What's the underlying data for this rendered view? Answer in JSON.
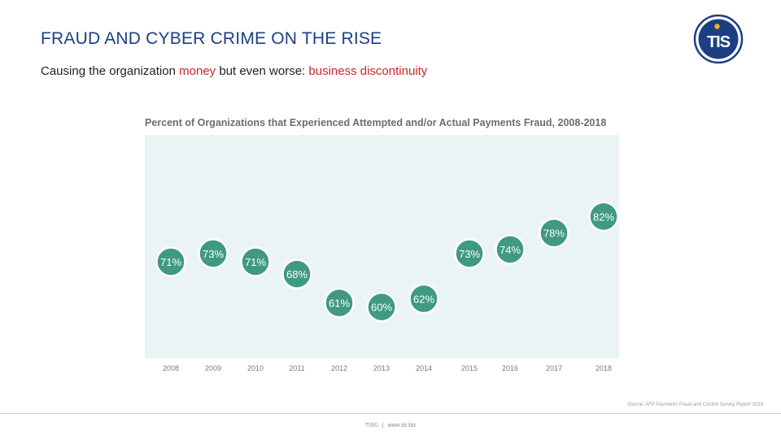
{
  "slide": {
    "title": "FRAUD AND CYBER CRIME ON THE RISE",
    "subtitle_prefix": "Causing the organization ",
    "subtitle_hl1": "money",
    "subtitle_mid": " but even worse: ",
    "subtitle_hl2": "business discontinuity"
  },
  "logo": {
    "text": "TIS",
    "icon": "tis-logo-icon",
    "colors": {
      "blue": "#1c3f84",
      "gold": "#f2b21b"
    }
  },
  "chart_data": {
    "type": "scatter",
    "title": "Percent of Organizations that Experienced Attempted and/or Actual Payments Fraud, 2008-2018",
    "x": [
      "2008",
      "2009",
      "2010",
      "2011",
      "2012",
      "2013",
      "2014",
      "2015",
      "2016",
      "2017",
      "2018"
    ],
    "values": [
      71,
      73,
      71,
      68,
      61,
      60,
      62,
      73,
      74,
      78,
      82
    ],
    "labels": [
      "71%",
      "73%",
      "71%",
      "68%",
      "61%",
      "60%",
      "62%",
      "73%",
      "74%",
      "78%",
      "82%"
    ],
    "xlabel": "",
    "ylabel": "",
    "grid": false,
    "colors": {
      "marker": "#3f9a80",
      "marker_border": "#ffffff",
      "plot_bg": "#ebf4f4",
      "label": "#ffffff",
      "tick": "#7a7a7a"
    }
  },
  "source": "Source: AFP Payments Fraud and Control Survey Report 2019",
  "footer": {
    "brand": "TIS©",
    "separator": "|",
    "url": "www.tis.biz"
  }
}
